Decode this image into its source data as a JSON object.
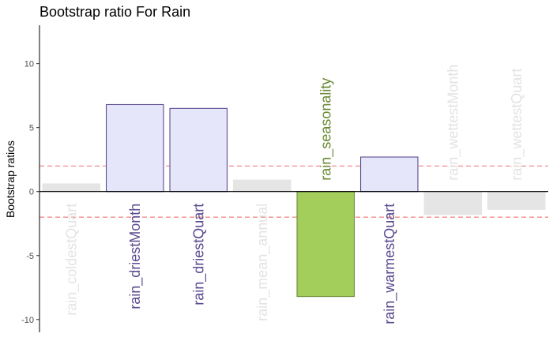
{
  "chart_data": {
    "type": "bar",
    "title": "Bootstrap ratio For Rain",
    "xlabel": "",
    "ylabel": "Bootstrap ratios",
    "ylim": [
      -11,
      13
    ],
    "yticks": [
      -10,
      -5,
      0,
      5,
      10
    ],
    "threshold_lines": [
      2,
      -2
    ],
    "grid": false,
    "categories": [
      "rain_coldestQuart",
      "rain_driestMonth",
      "rain_driestQuart",
      "rain_mean_annual",
      "rain_seasonality",
      "rain_warmestQuart",
      "rain_wettestMonth",
      "rain_wettestQuart"
    ],
    "values": [
      0.6,
      6.8,
      6.5,
      0.9,
      -8.2,
      2.7,
      -1.8,
      -1.4
    ],
    "groups": [
      "nonsig",
      "positive",
      "positive",
      "nonsig",
      "negative",
      "positive",
      "nonsig",
      "nonsig"
    ],
    "colors": {
      "positive": {
        "fill": "#e6e6fa",
        "stroke": "#5b4a8f",
        "text": "#5b4a8f"
      },
      "negative": {
        "fill": "#a3ce5b",
        "stroke": "#6b8a35",
        "text": "#6b8a35"
      },
      "nonsig": {
        "fill": "#e5e5e5",
        "stroke": "#e5e5e5",
        "text": "#e3e3e3"
      },
      "threshold": "#f08080",
      "axis": "#000000"
    }
  }
}
